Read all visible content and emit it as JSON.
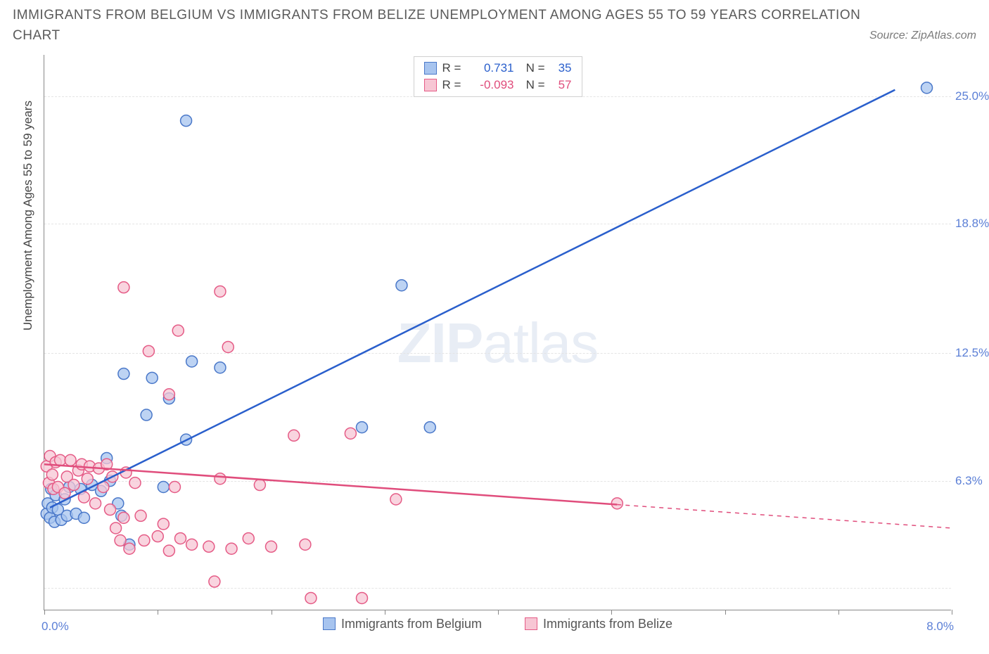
{
  "title": "IMMIGRANTS FROM BELGIUM VS IMMIGRANTS FROM BELIZE UNEMPLOYMENT AMONG AGES 55 TO 59 YEARS CORRELATION CHART",
  "source": "Source: ZipAtlas.com",
  "watermark_a": "ZIP",
  "watermark_b": "atlas",
  "ylabel": "Unemployment Among Ages 55 to 59 years",
  "chart": {
    "type": "scatter",
    "xlim": [
      0.0,
      8.0
    ],
    "ylim": [
      0.0,
      27.0
    ],
    "xlim_labels": {
      "min": "0.0%",
      "max": "8.0%"
    },
    "xtick_positions": [
      0.0,
      1.0,
      2.0,
      3.0,
      4.0,
      5.0,
      6.0,
      7.0,
      8.0
    ],
    "yticks": [
      {
        "pos": 25.0,
        "label": "25.0%"
      },
      {
        "pos": 18.8,
        "label": "18.8%"
      },
      {
        "pos": 12.5,
        "label": "12.5%"
      },
      {
        "pos": 6.3,
        "label": "6.3%"
      }
    ],
    "grid_positions": [
      25.0,
      18.8,
      12.5,
      6.3,
      1.1
    ],
    "grid_color": "#e4e4e4",
    "background_color": "#ffffff",
    "marker_radius": 8,
    "marker_stroke_width": 1.5,
    "series": [
      {
        "name": "Immigrants from Belgium",
        "color_fill": "#a7c4ef",
        "color_stroke": "#4a78c9",
        "color_line": "#2a5fcc",
        "R_label": "R =",
        "R": "0.731",
        "N_label": "N =",
        "N": "35",
        "trend": {
          "x1": 0.05,
          "y1": 5.0,
          "x2": 7.5,
          "y2": 25.3,
          "solid_until_x": 7.5
        },
        "points": [
          [
            0.02,
            4.7
          ],
          [
            0.03,
            5.2
          ],
          [
            0.05,
            4.5
          ],
          [
            0.06,
            5.9
          ],
          [
            0.07,
            5.0
          ],
          [
            0.09,
            4.3
          ],
          [
            0.1,
            5.6
          ],
          [
            0.12,
            4.9
          ],
          [
            0.15,
            4.4
          ],
          [
            0.18,
            5.4
          ],
          [
            0.2,
            4.6
          ],
          [
            0.22,
            6.0
          ],
          [
            0.28,
            4.7
          ],
          [
            0.32,
            5.9
          ],
          [
            0.35,
            4.5
          ],
          [
            0.42,
            6.1
          ],
          [
            0.5,
            5.8
          ],
          [
            0.58,
            6.3
          ],
          [
            0.65,
            5.2
          ],
          [
            0.55,
            7.4
          ],
          [
            0.68,
            4.6
          ],
          [
            0.75,
            3.2
          ],
          [
            0.7,
            11.5
          ],
          [
            0.9,
            9.5
          ],
          [
            0.95,
            11.3
          ],
          [
            1.1,
            10.3
          ],
          [
            1.05,
            6.0
          ],
          [
            1.25,
            8.3
          ],
          [
            1.3,
            12.1
          ],
          [
            1.55,
            11.8
          ],
          [
            1.25,
            23.8
          ],
          [
            3.15,
            15.8
          ],
          [
            2.8,
            8.9
          ],
          [
            3.4,
            8.9
          ],
          [
            7.78,
            25.4
          ]
        ]
      },
      {
        "name": "Immigrants from Belize",
        "color_fill": "#f7c6d4",
        "color_stroke": "#e55b86",
        "color_line": "#e04d7c",
        "R_label": "R =",
        "R": "-0.093",
        "N_label": "N =",
        "N": "57",
        "trend": {
          "x1": 0.0,
          "y1": 7.1,
          "x2": 8.0,
          "y2": 4.0,
          "solid_until_x": 5.05
        },
        "points": [
          [
            0.02,
            7.0
          ],
          [
            0.04,
            6.2
          ],
          [
            0.05,
            7.5
          ],
          [
            0.07,
            6.6
          ],
          [
            0.08,
            5.9
          ],
          [
            0.1,
            7.2
          ],
          [
            0.12,
            6.0
          ],
          [
            0.14,
            7.3
          ],
          [
            0.18,
            5.7
          ],
          [
            0.2,
            6.5
          ],
          [
            0.23,
            7.3
          ],
          [
            0.26,
            6.1
          ],
          [
            0.3,
            6.8
          ],
          [
            0.33,
            7.1
          ],
          [
            0.35,
            5.5
          ],
          [
            0.38,
            6.4
          ],
          [
            0.4,
            7.0
          ],
          [
            0.45,
            5.2
          ],
          [
            0.48,
            6.9
          ],
          [
            0.52,
            6.0
          ],
          [
            0.55,
            7.1
          ],
          [
            0.58,
            4.9
          ],
          [
            0.6,
            6.5
          ],
          [
            0.63,
            4.0
          ],
          [
            0.67,
            3.4
          ],
          [
            0.7,
            4.5
          ],
          [
            0.72,
            6.7
          ],
          [
            0.75,
            3.0
          ],
          [
            0.8,
            6.2
          ],
          [
            0.85,
            4.6
          ],
          [
            0.88,
            3.4
          ],
          [
            0.92,
            12.6
          ],
          [
            0.7,
            15.7
          ],
          [
            1.0,
            3.6
          ],
          [
            1.05,
            4.2
          ],
          [
            1.1,
            2.9
          ],
          [
            1.15,
            6.0
          ],
          [
            1.18,
            13.6
          ],
          [
            1.2,
            3.5
          ],
          [
            1.3,
            3.2
          ],
          [
            1.1,
            10.5
          ],
          [
            1.45,
            3.1
          ],
          [
            1.5,
            1.4
          ],
          [
            1.55,
            6.4
          ],
          [
            1.65,
            3.0
          ],
          [
            1.55,
            15.5
          ],
          [
            1.62,
            12.8
          ],
          [
            1.8,
            3.5
          ],
          [
            1.9,
            6.1
          ],
          [
            2.0,
            3.1
          ],
          [
            2.3,
            3.2
          ],
          [
            2.2,
            8.5
          ],
          [
            2.35,
            0.6
          ],
          [
            2.8,
            0.6
          ],
          [
            2.7,
            8.6
          ],
          [
            3.1,
            5.4
          ],
          [
            5.05,
            5.2
          ]
        ]
      }
    ]
  },
  "legend_bottom": [
    {
      "label": "Immigrants from Belgium",
      "fill": "#a7c4ef",
      "stroke": "#4a78c9"
    },
    {
      "label": "Immigrants from Belize",
      "fill": "#f7c6d4",
      "stroke": "#e55b86"
    }
  ]
}
